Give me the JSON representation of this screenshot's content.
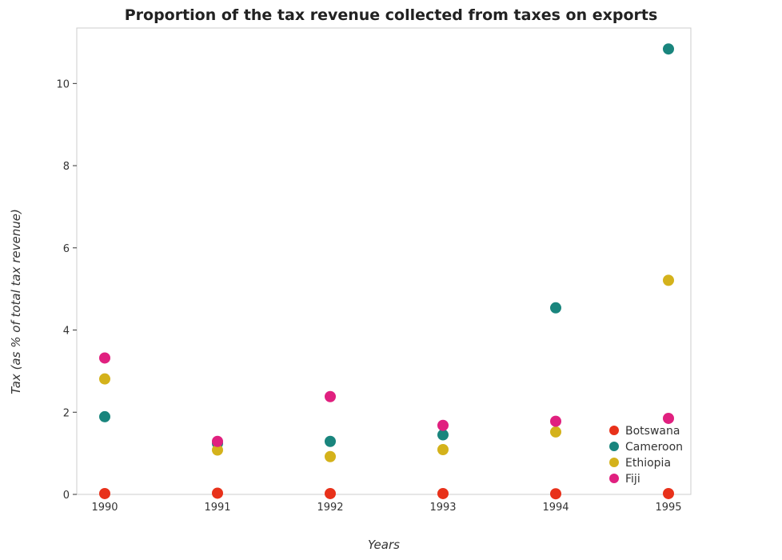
{
  "chart_data": {
    "type": "scatter",
    "title": "Proportion of the tax revenue collected from taxes on exports",
    "xlabel": "Years",
    "ylabel": "Tax (as % of total tax revenue)",
    "x": [
      "1990",
      "1991",
      "1992",
      "1993",
      "1994",
      "1995"
    ],
    "ylim": [
      0,
      11.35
    ],
    "yticks": [
      "0",
      "2",
      "4",
      "6",
      "8",
      "10"
    ],
    "grid": false,
    "legend_position": "bottom-right",
    "series": [
      {
        "name": "Botswana",
        "color": "#e8311a",
        "values": [
          0.02,
          0.03,
          0.02,
          0.02,
          0.015,
          0.02
        ]
      },
      {
        "name": "Cameroon",
        "color": "#19857d",
        "values": [
          1.89,
          1.24,
          1.29,
          1.45,
          4.54,
          10.84
        ]
      },
      {
        "name": "Ethiopia",
        "color": "#d4b21b",
        "values": [
          2.81,
          1.08,
          0.92,
          1.09,
          1.52,
          5.21
        ]
      },
      {
        "name": "Fiji",
        "color": "#e0207f",
        "values": [
          3.32,
          1.29,
          2.38,
          1.68,
          1.78,
          1.85
        ]
      }
    ]
  }
}
